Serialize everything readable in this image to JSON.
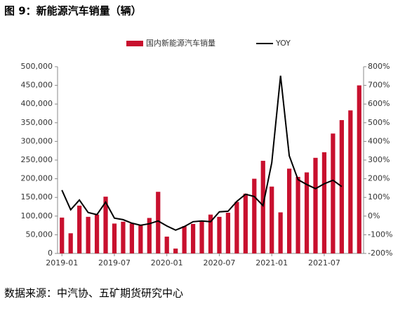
{
  "chart_data": {
    "type": "bar_line",
    "title": "图 9：新能源汽车销量（辆）",
    "source": "数据来源：中汽协、五矿期货研究中心",
    "categories": [
      "2019-01",
      null,
      null,
      null,
      null,
      null,
      "2019-07",
      null,
      null,
      null,
      null,
      null,
      "2020-01",
      null,
      null,
      null,
      null,
      null,
      "2020-07",
      null,
      null,
      null,
      null,
      null,
      "2021-01",
      null,
      null,
      null,
      null,
      null,
      "2021-07",
      null,
      null,
      null,
      null
    ],
    "series": [
      {
        "name": "国内新能源汽车销量",
        "color": "#c8102e",
        "type": "bar",
        "values": [
          96000,
          54000,
          128000,
          98000,
          104000,
          152000,
          80000,
          85000,
          80000,
          75000,
          95000,
          165000,
          45000,
          13000,
          73000,
          79000,
          85000,
          104000,
          98000,
          109000,
          138000,
          160000,
          200000,
          248000,
          179000,
          110000,
          227000,
          205000,
          217000,
          256000,
          271000,
          321000,
          357000,
          383000,
          450000
        ]
      },
      {
        "name": "YOY",
        "color": "#000000",
        "type": "line",
        "axis": "y2",
        "values": [
          139,
          34,
          86,
          19,
          8,
          75,
          -11,
          -19,
          -38,
          -49,
          -41,
          -26,
          -53,
          -75,
          -56,
          -30,
          -26,
          -30,
          23,
          26,
          79,
          117,
          105,
          56,
          286,
          752,
          323,
          195,
          169,
          147,
          173,
          192,
          158,
          null,
          null
        ]
      }
    ],
    "ylim": [
      0,
      500000
    ],
    "yticks": [
      {
        "value": 0,
        "label": "0"
      },
      {
        "value": 50000,
        "label": "50,000"
      },
      {
        "value": 100000,
        "label": "100,000"
      },
      {
        "value": 150000,
        "label": "150,000"
      },
      {
        "value": 200000,
        "label": "200,000"
      },
      {
        "value": 250000,
        "label": "250,000"
      },
      {
        "value": 300000,
        "label": "300,000"
      },
      {
        "value": 350000,
        "label": "350,000"
      },
      {
        "value": 400000,
        "label": "400,000"
      },
      {
        "value": 450000,
        "label": "450,000"
      },
      {
        "value": 500000,
        "label": "500,000"
      }
    ],
    "y2lim": [
      -200,
      800
    ],
    "y2ticks": [
      {
        "value": -200,
        "label": "-200%"
      },
      {
        "value": -100,
        "label": "-100%"
      },
      {
        "value": 0,
        "label": "0%"
      },
      {
        "value": 100,
        "label": "100%"
      },
      {
        "value": 200,
        "label": "200%"
      },
      {
        "value": 300,
        "label": "300%"
      },
      {
        "value": 400,
        "label": "400%"
      },
      {
        "value": 500,
        "label": "500%"
      },
      {
        "value": 600,
        "label": "600%"
      },
      {
        "value": 700,
        "label": "700%"
      },
      {
        "value": 800,
        "label": "800%"
      }
    ],
    "legend": "top"
  }
}
